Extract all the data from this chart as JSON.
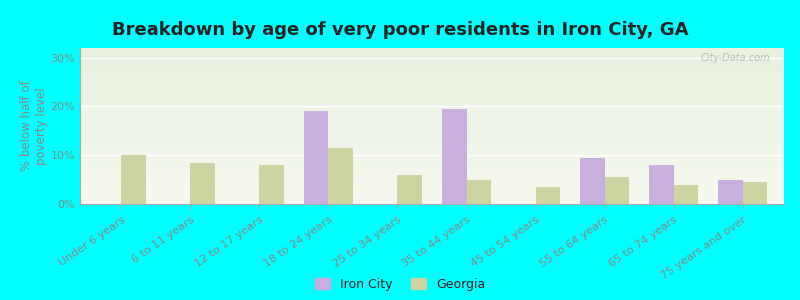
{
  "title": "Breakdown by age of very poor residents in Iron City, GA",
  "ylabel": "% below half of\npoverty level",
  "categories": [
    "Under 6 years",
    "6 to 11 years",
    "12 to 17 years",
    "18 to 24 years",
    "25 to 34 years",
    "35 to 44 years",
    "45 to 54 years",
    "55 to 64 years",
    "65 to 74 years",
    "75 years and over"
  ],
  "iron_city": [
    0,
    0,
    0,
    19,
    0,
    19.5,
    0,
    9.5,
    8,
    5
  ],
  "georgia": [
    10,
    8.5,
    8,
    11.5,
    6,
    5,
    3.5,
    5.5,
    4,
    4.5
  ],
  "iron_city_color": "#c9aee0",
  "georgia_color": "#cdd4a0",
  "background_color": "#00ffff",
  "ylim": [
    0,
    32
  ],
  "yticks": [
    0,
    10,
    20,
    30
  ],
  "bar_width": 0.35,
  "title_fontsize": 13,
  "axis_fontsize": 8.5,
  "tick_fontsize": 8,
  "legend_labels": [
    "Iron City",
    "Georgia"
  ],
  "watermark": "City-Data.com"
}
